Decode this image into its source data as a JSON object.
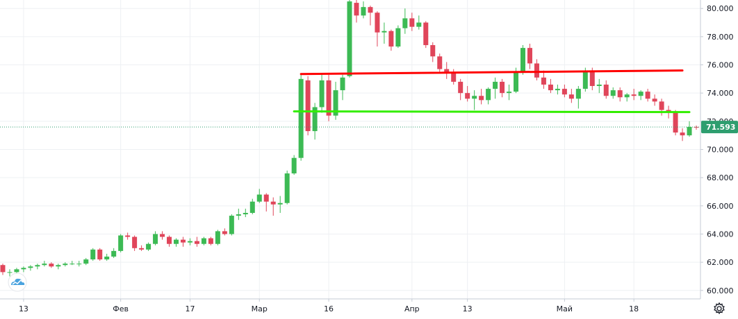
{
  "chart_data": {
    "type": "candlestick",
    "ylim": [
      59.4,
      80.6
    ],
    "y_ticks": [
      60,
      62,
      64,
      66,
      68,
      70,
      72,
      74,
      76,
      78,
      80
    ],
    "y_tick_labels": [
      "60.000",
      "62.000",
      "64.000",
      "66.000",
      "68.000",
      "70.000",
      "72.000",
      "74.000",
      "76.000",
      "78.000",
      "80.000"
    ],
    "x_labels": [
      {
        "label": "13",
        "index": 3
      },
      {
        "label": "Фев",
        "index": 17
      },
      {
        "label": "17",
        "index": 27
      },
      {
        "label": "Мар",
        "index": 37
      },
      {
        "label": "16",
        "index": 47
      },
      {
        "label": "Апр",
        "index": 59
      },
      {
        "label": "13",
        "index": 67
      },
      {
        "label": "Май",
        "index": 81
      },
      {
        "label": "18",
        "index": 91
      }
    ],
    "candles": [
      [
        61.8,
        61.9,
        61.1,
        61.3
      ],
      [
        61.3,
        61.5,
        61.0,
        61.3
      ],
      [
        61.3,
        61.6,
        61.2,
        61.5
      ],
      [
        61.5,
        61.7,
        61.3,
        61.6
      ],
      [
        61.6,
        61.8,
        61.4,
        61.7
      ],
      [
        61.7,
        61.9,
        61.5,
        61.8
      ],
      [
        61.8,
        62.1,
        61.7,
        61.9
      ],
      [
        61.9,
        62.0,
        61.6,
        61.7
      ],
      [
        61.7,
        61.9,
        61.5,
        61.8
      ],
      [
        61.8,
        62.0,
        61.7,
        61.9
      ],
      [
        61.9,
        62.1,
        61.8,
        61.9
      ],
      [
        61.9,
        62.1,
        61.7,
        61.9
      ],
      [
        61.9,
        62.3,
        61.8,
        62.2
      ],
      [
        62.2,
        63.0,
        62.1,
        62.9
      ],
      [
        62.9,
        63.0,
        62.1,
        62.2
      ],
      [
        62.2,
        62.6,
        62.1,
        62.4
      ],
      [
        62.4,
        63.0,
        62.3,
        62.8
      ],
      [
        62.8,
        64.0,
        62.7,
        63.9
      ],
      [
        63.9,
        64.1,
        63.6,
        63.8
      ],
      [
        63.8,
        63.9,
        62.8,
        63.0
      ],
      [
        63.0,
        63.2,
        62.8,
        62.9
      ],
      [
        62.9,
        63.4,
        62.8,
        63.3
      ],
      [
        63.3,
        64.2,
        63.2,
        64.0
      ],
      [
        64.0,
        64.2,
        63.6,
        63.8
      ],
      [
        63.8,
        63.9,
        63.1,
        63.3
      ],
      [
        63.3,
        63.7,
        63.1,
        63.6
      ],
      [
        63.6,
        63.8,
        63.1,
        63.4
      ],
      [
        63.4,
        63.7,
        63.2,
        63.5
      ],
      [
        63.5,
        63.8,
        63.1,
        63.3
      ],
      [
        63.3,
        63.8,
        63.2,
        63.7
      ],
      [
        63.7,
        63.8,
        63.2,
        63.3
      ],
      [
        63.3,
        64.3,
        63.2,
        64.2
      ],
      [
        64.2,
        64.4,
        63.9,
        64.0
      ],
      [
        64.0,
        65.4,
        63.9,
        65.3
      ],
      [
        65.3,
        65.8,
        65.0,
        65.4
      ],
      [
        65.4,
        65.8,
        65.2,
        65.5
      ],
      [
        65.5,
        66.5,
        65.4,
        66.3
      ],
      [
        66.3,
        67.2,
        66.2,
        66.8
      ],
      [
        66.8,
        66.9,
        65.6,
        66.3
      ],
      [
        66.3,
        66.6,
        65.3,
        66.1
      ],
      [
        66.1,
        66.7,
        65.5,
        66.2
      ],
      [
        66.2,
        68.5,
        66.1,
        68.3
      ],
      [
        68.3,
        69.6,
        68.2,
        69.4
      ],
      [
        69.4,
        75.3,
        69.2,
        75.0
      ],
      [
        74.9,
        75.2,
        71.0,
        71.3
      ],
      [
        71.3,
        73.3,
        70.7,
        73.0
      ],
      [
        73.0,
        75.4,
        72.6,
        74.9
      ],
      [
        74.9,
        75.3,
        72.0,
        72.4
      ],
      [
        72.4,
        74.8,
        72.1,
        74.2
      ],
      [
        74.2,
        75.3,
        73.5,
        75.1
      ],
      [
        75.2,
        80.6,
        75.1,
        80.5
      ],
      [
        80.4,
        80.6,
        79.0,
        79.5
      ],
      [
        79.5,
        80.5,
        79.3,
        80.1
      ],
      [
        80.1,
        80.2,
        78.8,
        79.7
      ],
      [
        79.7,
        79.8,
        77.3,
        78.3
      ],
      [
        78.3,
        79.0,
        77.5,
        78.4
      ],
      [
        78.4,
        78.5,
        77.0,
        77.3
      ],
      [
        77.3,
        78.8,
        77.2,
        78.6
      ],
      [
        78.6,
        80.0,
        78.2,
        79.3
      ],
      [
        79.3,
        79.7,
        78.4,
        78.7
      ],
      [
        78.7,
        79.5,
        78.5,
        79.0
      ],
      [
        79.0,
        79.1,
        77.2,
        77.4
      ],
      [
        77.4,
        77.6,
        76.2,
        76.6
      ],
      [
        76.6,
        76.8,
        75.5,
        75.7
      ],
      [
        75.7,
        76.2,
        75.0,
        75.4
      ],
      [
        75.4,
        75.7,
        74.6,
        74.8
      ],
      [
        74.8,
        75.0,
        73.5,
        74.0
      ],
      [
        74.0,
        74.5,
        73.4,
        73.6
      ],
      [
        73.6,
        74.2,
        72.8,
        73.8
      ],
      [
        73.8,
        74.3,
        73.2,
        73.5
      ],
      [
        73.5,
        74.4,
        73.2,
        74.3
      ],
      [
        74.3,
        75.1,
        73.6,
        74.8
      ],
      [
        74.8,
        75.0,
        73.7,
        74.0
      ],
      [
        74.0,
        74.6,
        73.5,
        74.1
      ],
      [
        74.1,
        75.8,
        74.0,
        75.5
      ],
      [
        75.5,
        77.4,
        75.3,
        77.2
      ],
      [
        77.2,
        77.5,
        75.7,
        76.1
      ],
      [
        76.1,
        76.4,
        74.9,
        75.1
      ],
      [
        75.1,
        75.6,
        74.3,
        74.6
      ],
      [
        74.6,
        75.0,
        74.0,
        74.2
      ],
      [
        74.2,
        74.6,
        73.9,
        74.3
      ],
      [
        74.3,
        74.6,
        73.7,
        73.9
      ],
      [
        73.9,
        74.3,
        73.3,
        73.6
      ],
      [
        73.6,
        74.5,
        72.9,
        74.3
      ],
      [
        74.3,
        75.8,
        74.1,
        75.5
      ],
      [
        75.5,
        75.8,
        74.2,
        74.5
      ],
      [
        74.5,
        75.0,
        74.0,
        74.6
      ],
      [
        74.6,
        74.9,
        73.6,
        73.8
      ],
      [
        73.8,
        74.4,
        73.6,
        74.2
      ],
      [
        74.2,
        74.4,
        73.4,
        73.7
      ],
      [
        73.7,
        74.0,
        73.4,
        73.9
      ],
      [
        73.9,
        74.3,
        73.5,
        73.8
      ],
      [
        73.8,
        74.2,
        73.5,
        74.1
      ],
      [
        74.1,
        74.3,
        73.4,
        73.6
      ],
      [
        73.6,
        73.9,
        73.1,
        73.4
      ],
      [
        73.4,
        73.6,
        72.4,
        72.8
      ],
      [
        72.8,
        73.1,
        72.2,
        72.6
      ],
      [
        72.6,
        72.8,
        71.0,
        71.2
      ],
      [
        71.2,
        71.5,
        70.6,
        71.0
      ],
      [
        71.0,
        72.0,
        70.9,
        71.6
      ],
      [
        71.6,
        71.7,
        71.4,
        71.59
      ]
    ],
    "horizontal_lines": [
      {
        "name": "resistance",
        "start_index": 43,
        "end_index": 98,
        "y_start": 75.35,
        "y_end": 75.6,
        "color": "#ff0000"
      },
      {
        "name": "support",
        "start_index": 42,
        "end_index": 99,
        "y_start": 72.7,
        "y_end": 72.65,
        "color": "#33ee00"
      }
    ],
    "last_price": 71.593,
    "last_price_label": "71.593",
    "grid": true
  },
  "colors": {
    "up": "#26a69a",
    "down": "#ef5350",
    "up_fill": "#3cba54",
    "down_fill": "#e0455a",
    "grid": "#eef0f3",
    "axis_line": "#c5cbd5",
    "text": "#131722",
    "price_label_bg": "#2e9e6f"
  },
  "icons": {
    "logo": "cloud-logo-icon",
    "settings": "gear-icon"
  }
}
